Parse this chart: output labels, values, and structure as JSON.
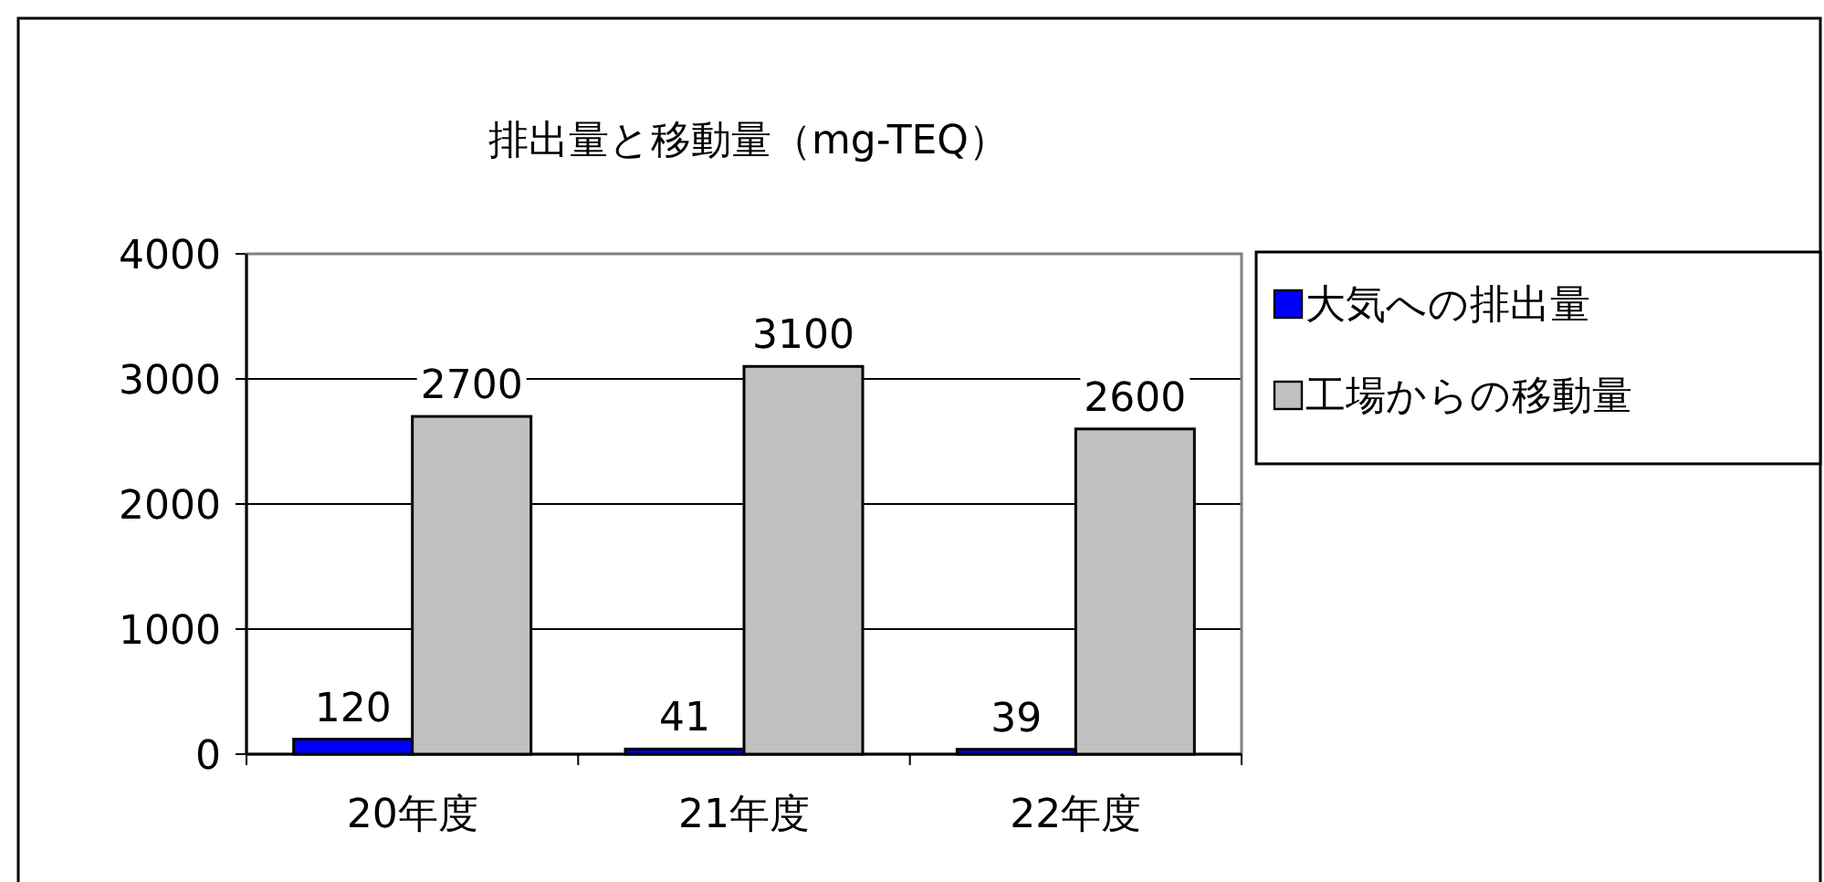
{
  "chart_data": {
    "type": "bar",
    "title": "排出量と移動量（mg-TEQ）",
    "categories": [
      "20年度",
      "21年度",
      "22年度"
    ],
    "series": [
      {
        "name": "大気への排出量",
        "color": "#0000ff",
        "values": [
          120,
          41,
          39
        ]
      },
      {
        "name": "工場からの移動量",
        "color": "#c0c0c0",
        "values": [
          2700,
          3100,
          2600
        ]
      }
    ],
    "ylim": [
      0,
      4000
    ],
    "yticks": [
      0,
      1000,
      2000,
      3000,
      4000
    ],
    "grid": "y",
    "legend": "right",
    "data_labels": true
  }
}
